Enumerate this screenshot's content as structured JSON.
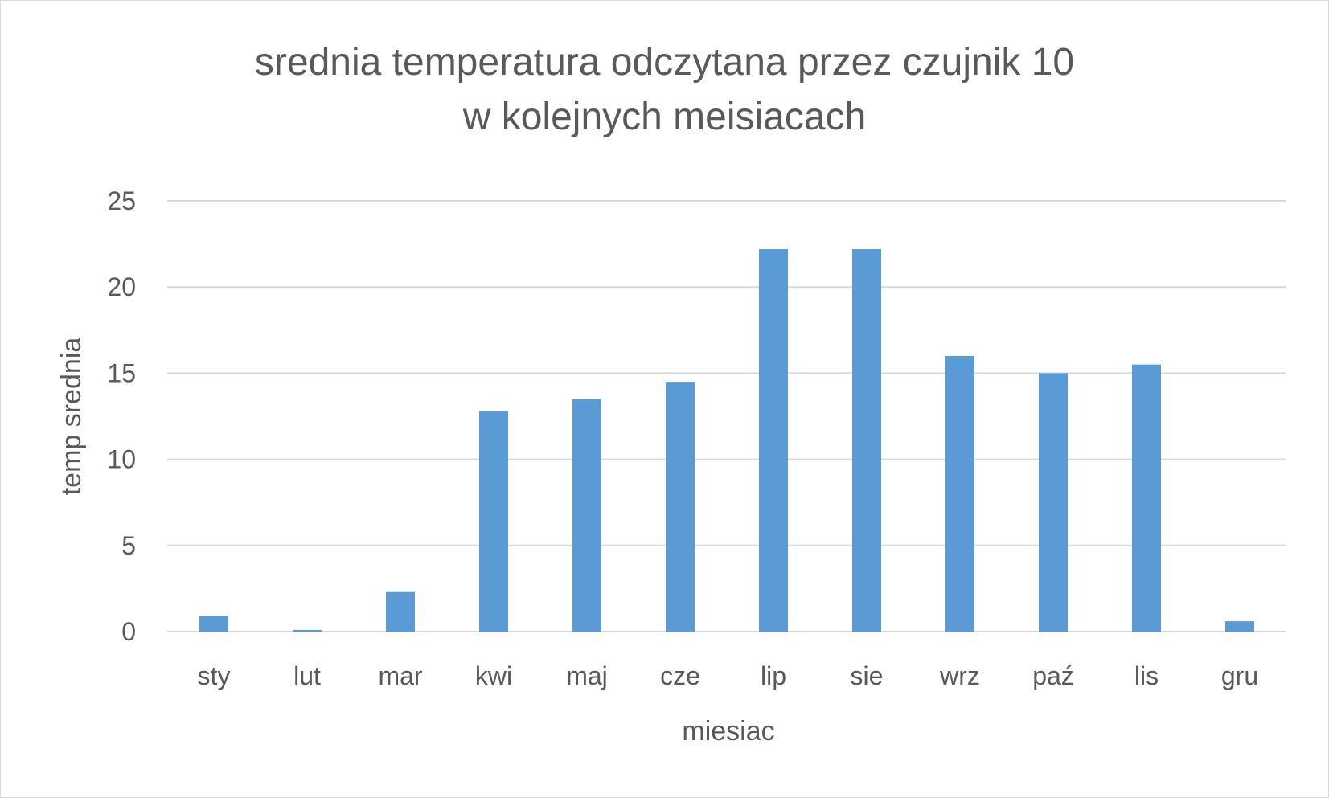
{
  "chart_data": {
    "type": "bar",
    "title_lines": [
      "srednia temperatura odczytana przez czujnik 10",
      "w kolejnych meisiacach"
    ],
    "xlabel": "miesiac",
    "ylabel": "temp srednia",
    "categories": [
      "sty",
      "lut",
      "mar",
      "kwi",
      "maj",
      "cze",
      "lip",
      "sie",
      "wrz",
      "paź",
      "lis",
      "gru"
    ],
    "values": [
      0.9,
      0.1,
      2.3,
      12.8,
      13.5,
      14.5,
      22.2,
      22.2,
      16.0,
      15.0,
      15.5,
      0.6
    ],
    "ylim": [
      0,
      25
    ],
    "yticks": [
      "0",
      "5",
      "10",
      "15",
      "20",
      "25"
    ],
    "grid": true,
    "legend": "none",
    "colors": {
      "bar": "#5b9bd5",
      "grid": "#d9d9d9",
      "text": "#595959"
    }
  }
}
